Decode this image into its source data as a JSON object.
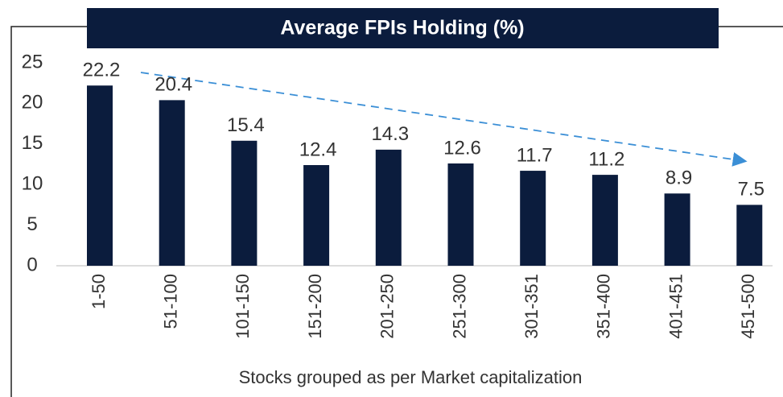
{
  "chart_data": {
    "type": "bar",
    "title": "Average FPIs Holding (%)",
    "x_label": "Stocks grouped as per Market capitalization",
    "categories": [
      "1-50",
      "51-100",
      "101-150",
      "151-200",
      "201-250",
      "251-300",
      "301-351",
      "351-400",
      "401-451",
      "451-500"
    ],
    "values": [
      22.2,
      20.4,
      15.4,
      12.4,
      14.3,
      12.6,
      11.7,
      11.2,
      8.9,
      7.5
    ],
    "color": "#0b1c3d",
    "ylim": [
      0,
      25
    ],
    "yticks": [
      0,
      5,
      10,
      15,
      20,
      25
    ],
    "grid": false
  }
}
